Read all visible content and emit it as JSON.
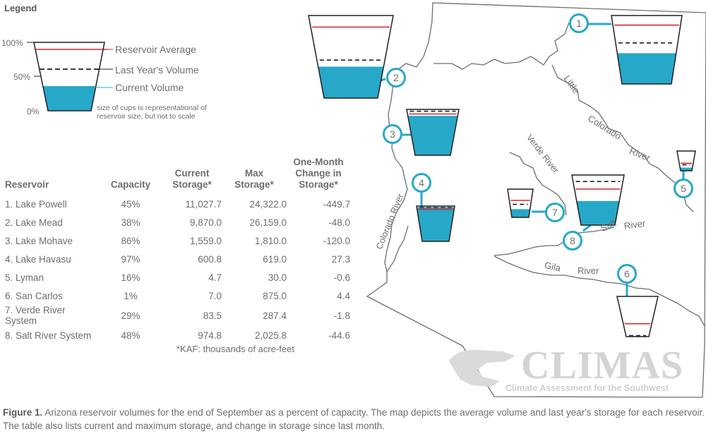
{
  "legend": {
    "title": "Legend",
    "pct_100": "100%",
    "pct_50": "50%",
    "pct_0": "0%",
    "reservoir_average": "Reservoir Average",
    "last_year": "Last Year's Volume",
    "current": "Current Volume",
    "note": "size of cups is representational of reservoir size, but not to scale"
  },
  "colors": {
    "water": "#27a8c9",
    "average": "#d7262b",
    "last_year": "#231f20",
    "outline": "#231f20",
    "marker": "#27a8c9",
    "border": "#6d6e71"
  },
  "table": {
    "headers": {
      "reservoir": "Reservoir",
      "capacity": "Capacity",
      "current": [
        "Current",
        "Storage*"
      ],
      "max": [
        "Max",
        "Storage*"
      ],
      "change": [
        "One-Month",
        "Change in",
        "Storage*"
      ]
    },
    "rows": [
      {
        "name": "1. Lake Powell",
        "capacity": "45%",
        "current": "11,027.7",
        "max": "24,322.0",
        "change": "-449.7"
      },
      {
        "name": "2. Lake Mead",
        "capacity": "38%",
        "current": "9,870.0",
        "max": "26,159.0",
        "change": "-48.0"
      },
      {
        "name": "3. Lake Mohave",
        "capacity": "86%",
        "current": "1,559.0",
        "max": "1,810.0",
        "change": "-120.0"
      },
      {
        "name": "4. Lake Havasu",
        "capacity": "97%",
        "current": "600.8",
        "max": "619.0",
        "change": "27.3"
      },
      {
        "name": "5. Lyman",
        "capacity": "16%",
        "current": "4.7",
        "max": "30.0",
        "change": "-0.6"
      },
      {
        "name": "6. San Carlos",
        "capacity": "1%",
        "current": "7.0",
        "max": "875.0",
        "change": "4.4"
      },
      {
        "name": "7. Verde River System",
        "capacity": "29%",
        "current": "83.5",
        "max": "287.4",
        "change": "-1.8"
      },
      {
        "name": "8. Salt River System",
        "capacity": "48%",
        "current": "974.8",
        "max": "2,025.8",
        "change": "-44.6"
      }
    ],
    "footnote": "*KAF: thousands of acre-feet"
  },
  "map": {
    "markers": [
      "1",
      "2",
      "3",
      "4",
      "5",
      "6",
      "7",
      "8"
    ],
    "rivers": {
      "little_colorado": [
        "Little",
        "Colorado",
        "River"
      ],
      "verde": "Verde River",
      "colorado": "Colorado River",
      "salt": [
        "Salt",
        "River"
      ],
      "gila": [
        "Gila",
        "River"
      ]
    },
    "cups": [
      {
        "id": "1",
        "current": 0.45,
        "average": 0.86,
        "last_year": 0.6
      },
      {
        "id": "2",
        "current": 0.38,
        "average": 0.86,
        "last_year": 0.46
      },
      {
        "id": "3",
        "current": 0.86,
        "average": 0.9,
        "last_year": 0.96
      },
      {
        "id": "4",
        "current": 0.97,
        "average": 0.91,
        "last_year": 0.96
      },
      {
        "id": "5",
        "current": 0.16,
        "average": 0.38,
        "last_year": 0.3
      },
      {
        "id": "6",
        "current": 0.01,
        "average": 0.32,
        "last_year": 0.0
      },
      {
        "id": "7",
        "current": 0.29,
        "average": 0.6,
        "last_year": 0.46
      },
      {
        "id": "8",
        "current": 0.48,
        "average": 0.72,
        "last_year": 0.87
      }
    ]
  },
  "logo": {
    "name": "CLIMAS",
    "tagline": "Climate Assessment for the Southwest"
  },
  "caption": {
    "label": "Figure 1.",
    "text": "Arizona reservoir volumes for the end of September as a percent of capacity. The map depicts the average volume and last year's storage for each reservoir. The table also lists current and maximum storage, and change in storage since last month."
  }
}
